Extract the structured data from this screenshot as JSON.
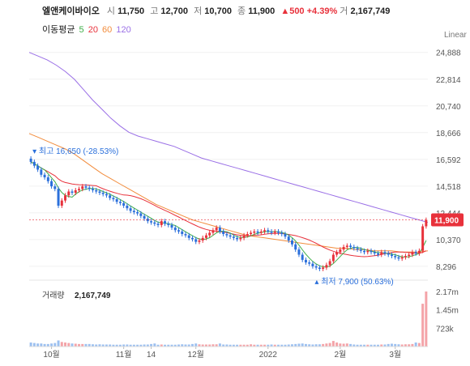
{
  "header": {
    "name": "엘앤케이바이오",
    "open_label": "시",
    "open": "11,750",
    "high_label": "고",
    "high": "12,700",
    "low_label": "저",
    "low": "10,700",
    "close_label": "종",
    "close": "11,900",
    "change": "▲500 +4.39%",
    "volume_label": "거",
    "volume": "2,167,749"
  },
  "ma_legend": {
    "title": "이동평균",
    "items": [
      {
        "label": "5",
        "color": "#3fae49"
      },
      {
        "label": "20",
        "color": "#e8313b"
      },
      {
        "label": "60",
        "color": "#f28c3c"
      },
      {
        "label": "120",
        "color": "#9a6fe6"
      }
    ]
  },
  "scale_label": "Linear",
  "colors": {
    "up": "#e8313b",
    "down": "#2a6fdb",
    "current_badge": "#e8313b"
  },
  "chart_data": {
    "type": "candlestick",
    "price_ticks": [
      8296,
      10370,
      12444,
      14518,
      16592,
      18666,
      20740,
      22814,
      24888
    ],
    "price_tick_labels": [
      "8,296",
      "10,370",
      "12,444",
      "14,518",
      "16,592",
      "18,666",
      "20,740",
      "22,814",
      "24,888"
    ],
    "current_price": 11900,
    "current_price_label": "11,900",
    "high_annotation": "최고 16,650 (-28.53%)",
    "low_annotation": "최저 7,900 (50.63%)",
    "high_marker": {
      "index": 0,
      "value": 16650
    },
    "low_marker": {
      "index": 84,
      "value": 7900
    },
    "x_labels": [
      {
        "index": 6,
        "label": "10월"
      },
      {
        "index": 27,
        "label": "11월"
      },
      {
        "index": 35,
        "label": "14"
      },
      {
        "index": 48,
        "label": "12월"
      },
      {
        "index": 69,
        "label": "2022"
      },
      {
        "index": 90,
        "label": "2월"
      },
      {
        "index": 106,
        "label": "3월"
      }
    ],
    "n_bars": 116,
    "close": [
      16400,
      16100,
      15800,
      15400,
      15200,
      14900,
      14500,
      14300,
      13000,
      13400,
      13800,
      14100,
      14000,
      14200,
      14300,
      14500,
      14400,
      14300,
      14200,
      14100,
      14000,
      13900,
      13800,
      13600,
      13500,
      13300,
      13200,
      13000,
      12800,
      12600,
      12500,
      12400,
      12200,
      12000,
      11800,
      11700,
      11600,
      11500,
      11800,
      11600,
      11500,
      11300,
      11100,
      11000,
      10800,
      10700,
      10500,
      10400,
      10200,
      10300,
      10500,
      10700,
      10900,
      11100,
      11300,
      11000,
      10800,
      10700,
      10600,
      10500,
      10400,
      10500,
      10700,
      10800,
      10900,
      11000,
      10900,
      11000,
      11100,
      11000,
      10900,
      11000,
      10900,
      10800,
      10600,
      10300,
      10000,
      9600,
      9200,
      8800,
      8600,
      8500,
      8300,
      8200,
      8100,
      8200,
      8400,
      8700,
      9200,
      9400,
      9600,
      9800,
      9900,
      9800,
      9700,
      9600,
      9500,
      9400,
      9500,
      9400,
      9300,
      9200,
      9400,
      9300,
      9200,
      9100,
      9000,
      8900,
      9000,
      9100,
      9200,
      9400,
      9300,
      9500,
      11400,
      11900
    ],
    "volume": [
      40,
      35,
      30,
      30,
      25,
      25,
      30,
      35,
      60,
      45,
      40,
      35,
      30,
      28,
      25,
      25,
      25,
      25,
      22,
      20,
      22,
      20,
      20,
      20,
      18,
      18,
      18,
      20,
      20,
      18,
      18,
      18,
      18,
      20,
      20,
      25,
      30,
      18,
      20,
      18,
      18,
      18,
      18,
      20,
      22,
      20,
      20,
      25,
      30,
      22,
      20,
      20,
      20,
      22,
      22,
      30,
      20,
      20,
      18,
      18,
      18,
      18,
      18,
      18,
      22,
      18,
      18,
      18,
      18,
      18,
      20,
      18,
      18,
      18,
      18,
      20,
      22,
      25,
      28,
      30,
      25,
      22,
      20,
      22,
      22,
      25,
      30,
      35,
      55,
      40,
      30,
      28,
      30,
      25,
      20,
      18,
      18,
      18,
      18,
      18,
      18,
      18,
      20,
      20,
      25,
      28,
      25,
      22,
      20,
      22,
      22,
      25,
      40,
      35,
      420,
      540
    ],
    "volume_ticks": [
      {
        "value": 723000,
        "label": "723k"
      },
      {
        "value": 1450000,
        "label": "1.45m"
      },
      {
        "value": 2170000,
        "label": "2.17m"
      }
    ],
    "volume_title": "거래량",
    "volume_value": "2,167,749",
    "ma_series": [
      {
        "name": "5",
        "color": "#3fae49"
      },
      {
        "name": "20",
        "color": "#e8313b"
      },
      {
        "name": "60",
        "color": "#f28c3c"
      },
      {
        "name": "120",
        "color": "#9a6fe6"
      }
    ],
    "ma120_points": [
      24888,
      24600,
      24300,
      23900,
      23400,
      22800,
      22000,
      21200,
      20500,
      19800,
      19200,
      18700,
      18400,
      18200,
      18000,
      17800,
      17600,
      17300,
      17000,
      16700,
      16500,
      16300,
      16100,
      15900,
      15700,
      15500,
      15300,
      15100,
      14900,
      14700,
      14500,
      14300,
      14100,
      13900,
      13700,
      13500,
      13300,
      13100,
      12900,
      12700,
      12500,
      12300,
      12100,
      11900,
      11700
    ],
    "ma60_points": [
      18600,
      18300,
      18000,
      17700,
      17400,
      17000,
      16500,
      16000,
      15500,
      15100,
      14700,
      14300,
      13900,
      13500,
      13100,
      12800,
      12500,
      12200,
      11900,
      11700,
      11500,
      11300,
      11100,
      10900,
      10700,
      10600,
      10500,
      10400,
      10300,
      10200,
      10100,
      10000,
      9900,
      9800,
      9700,
      9700,
      9600,
      9600,
      9500,
      9500,
      9500,
      9400,
      9400,
      9400,
      9500
    ]
  }
}
